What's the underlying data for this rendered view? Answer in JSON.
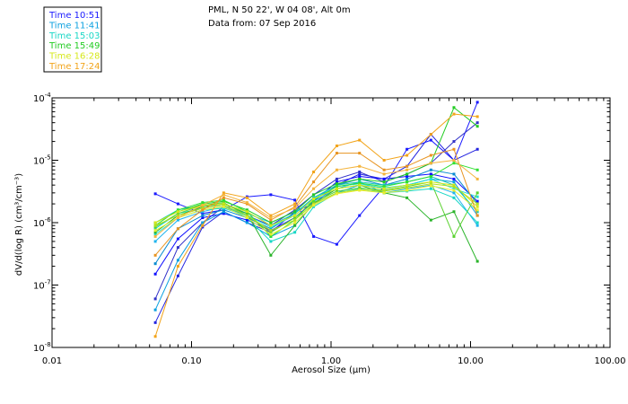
{
  "header": {
    "site": "PML, N 50 22', W 04 08', Alt 0m",
    "date": "Data from: 07 Sep 2016"
  },
  "legend": [
    {
      "label": "Time 10:51",
      "color": "#1a1aff"
    },
    {
      "label": "Time 11:41",
      "color": "#0aa0e0"
    },
    {
      "label": "Time 15:03",
      "color": "#18d7c6"
    },
    {
      "label": "Time 15:49",
      "color": "#22cc22"
    },
    {
      "label": "Time 16:28",
      "color": "#d6e81a"
    },
    {
      "label": "Time 17:24",
      "color": "#f2a41a"
    }
  ],
  "chart_data": {
    "type": "line",
    "xscale": "log",
    "yscale": "log",
    "xlim": [
      0.01,
      100
    ],
    "ylim": [
      1e-08,
      0.0001
    ],
    "xlabel": "Aerosol Size (µm)",
    "ylabel": "dV/d(log R) (cm³/cm⁻³)",
    "xticklabels": [
      "0.01",
      "0.10",
      "1.00",
      "10.00",
      "100.00"
    ],
    "yticklabels": [
      {
        "mantissa": "10",
        "exp": "-4"
      },
      {
        "mantissa": "10",
        "exp": "-5"
      },
      {
        "mantissa": "10",
        "exp": "-6"
      },
      {
        "mantissa": "10",
        "exp": "-7"
      },
      {
        "mantissa": "10",
        "exp": "-8"
      }
    ],
    "x": [
      0.055,
      0.08,
      0.12,
      0.17,
      0.25,
      0.37,
      0.55,
      0.75,
      1.1,
      1.6,
      2.4,
      3.5,
      5.2,
      7.6,
      11.2
    ],
    "series": [
      {
        "name": "Time 10:51",
        "color": "#1a1aff",
        "values": [
          2.9e-06,
          2e-06,
          1.4e-06,
          1.6e-06,
          2.6e-06,
          2.8e-06,
          2.3e-06,
          6e-07,
          4.5e-07,
          1.3e-06,
          3.8e-06,
          1.5e-05,
          2.1e-05,
          1e-05,
          8.5e-05
        ]
      },
      {
        "name": "Time 10:51",
        "color": "#2323e0",
        "values": [
          2.5e-08,
          1.4e-07,
          8.5e-07,
          1.5e-06,
          1e-06,
          7e-07,
          1.5e-06,
          2e-06,
          4e-06,
          6e-06,
          5e-06,
          8e-06,
          2.6e-05,
          1e-05,
          1.5e-05
        ]
      },
      {
        "name": "Time 10:51",
        "color": "#3030c8",
        "values": [
          6e-08,
          4e-07,
          1e-06,
          1.8e-06,
          1.3e-06,
          9e-07,
          1.6e-06,
          2.8e-06,
          5e-06,
          6.5e-06,
          4.5e-06,
          6e-06,
          9e-06,
          2e-05,
          4e-05
        ]
      },
      {
        "name": "Time 10:51",
        "color": "#1010ff",
        "values": [
          1.5e-07,
          5.5e-07,
          1.2e-06,
          1.4e-06,
          1.1e-06,
          7.5e-07,
          1.2e-06,
          2.2e-06,
          4.5e-06,
          5.5e-06,
          5e-06,
          5.5e-06,
          6e-06,
          5e-06,
          2.2e-06
        ]
      },
      {
        "name": "Time 11:41",
        "color": "#0aa0e0",
        "values": [
          4e-08,
          2.5e-07,
          1e-06,
          1.5e-06,
          1e-06,
          6e-07,
          9e-07,
          2e-06,
          3e-06,
          4e-06,
          3.5e-06,
          4e-06,
          5e-06,
          4.5e-06,
          1.3e-06
        ]
      },
      {
        "name": "Time 11:41",
        "color": "#0a8cd0",
        "values": [
          2.2e-07,
          8e-07,
          1.3e-06,
          1.6e-06,
          1.2e-06,
          8e-07,
          1.4e-06,
          2.5e-06,
          4e-06,
          5e-06,
          4e-06,
          5e-06,
          7e-06,
          6e-06,
          2e-06
        ]
      },
      {
        "name": "Time 11:41",
        "color": "#1fb4ee",
        "values": [
          5e-07,
          1.1e-06,
          1.5e-06,
          1.8e-06,
          1.4e-06,
          1e-06,
          1.5e-06,
          2.2e-06,
          3.5e-06,
          4.5e-06,
          3e-06,
          3.5e-06,
          4e-06,
          3e-06,
          9e-07
        ]
      },
      {
        "name": "Time 15:03",
        "color": "#18d7c6",
        "values": [
          8e-07,
          1.4e-06,
          1.7e-06,
          1.9e-06,
          1.2e-06,
          5e-07,
          7e-07,
          1.8e-06,
          3e-06,
          3.5e-06,
          3e-06,
          3.2e-06,
          3.5e-06,
          2.5e-06,
          1e-06
        ]
      },
      {
        "name": "Time 15:03",
        "color": "#14c8b4",
        "values": [
          1e-06,
          1.6e-06,
          1.9e-06,
          2e-06,
          1.5e-06,
          9e-07,
          1.4e-06,
          2.5e-06,
          4e-06,
          4.5e-06,
          4e-06,
          4.5e-06,
          5.5e-06,
          4e-06,
          1.5e-06
        ]
      },
      {
        "name": "Time 15:03",
        "color": "#20e0d0",
        "values": [
          6.5e-07,
          1.2e-06,
          1.6e-06,
          1.7e-06,
          1.3e-06,
          8.5e-07,
          1.3e-06,
          2.4e-06,
          3.8e-06,
          4.2e-06,
          3.6e-06,
          4e-06,
          5e-06,
          3.5e-06,
          2.6e-06
        ]
      },
      {
        "name": "Time 15:49",
        "color": "#22cc22",
        "values": [
          1e-06,
          1.5e-06,
          2e-06,
          2.2e-06,
          1.6e-06,
          1e-06,
          1.5e-06,
          2.8e-06,
          4.2e-06,
          5e-06,
          4.5e-06,
          6e-06,
          9e-06,
          7e-05,
          3.5e-05
        ]
      },
      {
        "name": "Time 15:49",
        "color": "#2ab42a",
        "values": [
          7e-07,
          1.3e-06,
          1.8e-06,
          2e-06,
          1.4e-06,
          3e-07,
          9e-07,
          2e-06,
          3.5e-06,
          4e-06,
          3e-06,
          2.5e-06,
          1.1e-06,
          1.5e-06,
          2.4e-07
        ]
      },
      {
        "name": "Time 15:49",
        "color": "#30e030",
        "values": [
          9e-07,
          1.6e-06,
          2.1e-06,
          2.3e-06,
          1.5e-06,
          6e-07,
          1.1e-06,
          2.3e-06,
          3.8e-06,
          4.3e-06,
          3.8e-06,
          4.5e-06,
          5.5e-06,
          9e-06,
          7e-06
        ]
      },
      {
        "name": "Time 15:49",
        "color": "#5ad230",
        "values": [
          8.5e-07,
          1.4e-06,
          1.9e-06,
          2.1e-06,
          1.3e-06,
          7e-07,
          1.2e-06,
          2.1e-06,
          3.2e-06,
          3.6e-06,
          3.3e-06,
          3.8e-06,
          4.5e-06,
          6e-07,
          3e-06
        ]
      },
      {
        "name": "Time 16:28",
        "color": "#d6e81a",
        "values": [
          1e-06,
          1.5e-06,
          1.9e-06,
          2e-06,
          1.5e-06,
          9e-07,
          1.3e-06,
          2.4e-06,
          3.5e-06,
          4e-06,
          3.5e-06,
          4e-06,
          4.5e-06,
          4e-06,
          1.8e-06
        ]
      },
      {
        "name": "Time 16:28",
        "color": "#b4e01e",
        "values": [
          9e-07,
          1.3e-06,
          1.7e-06,
          1.9e-06,
          1.3e-06,
          7.5e-07,
          1.1e-06,
          2e-06,
          3e-06,
          3.4e-06,
          3.2e-06,
          3.6e-06,
          4.2e-06,
          3.8e-06,
          2e-06
        ]
      },
      {
        "name": "Time 16:28",
        "color": "#e8ee30",
        "values": [
          7.5e-07,
          1.2e-06,
          1.6e-06,
          1.8e-06,
          1.2e-06,
          6.5e-07,
          1e-06,
          1.9e-06,
          2.9e-06,
          3.3e-06,
          3e-06,
          3.3e-06,
          3.9e-06,
          3.3e-06,
          1.6e-06
        ]
      },
      {
        "name": "Time 17:24",
        "color": "#f2a41a",
        "values": [
          1.5e-08,
          2e-07,
          9e-07,
          3e-06,
          2.5e-06,
          1.3e-06,
          2e-06,
          6.5e-06,
          1.7e-05,
          2.1e-05,
          1e-05,
          1.2e-05,
          2.6e-05,
          5.5e-05,
          5e-05
        ]
      },
      {
        "name": "Time 17:24",
        "color": "#e89420",
        "values": [
          3e-07,
          8e-07,
          1.6e-06,
          2.5e-06,
          2e-06,
          1.1e-06,
          1.8e-06,
          4.5e-06,
          1.3e-05,
          1.3e-05,
          7e-06,
          8e-06,
          1.2e-05,
          1.5e-05,
          1.3e-06
        ]
      },
      {
        "name": "Time 17:24",
        "color": "#f4b43c",
        "values": [
          6e-07,
          1.2e-06,
          1.9e-06,
          2.8e-06,
          2.1e-06,
          1.2e-06,
          1.7e-06,
          3.5e-06,
          7e-06,
          8e-06,
          6e-06,
          7e-06,
          9e-06,
          1e-05,
          5e-06
        ]
      }
    ]
  }
}
